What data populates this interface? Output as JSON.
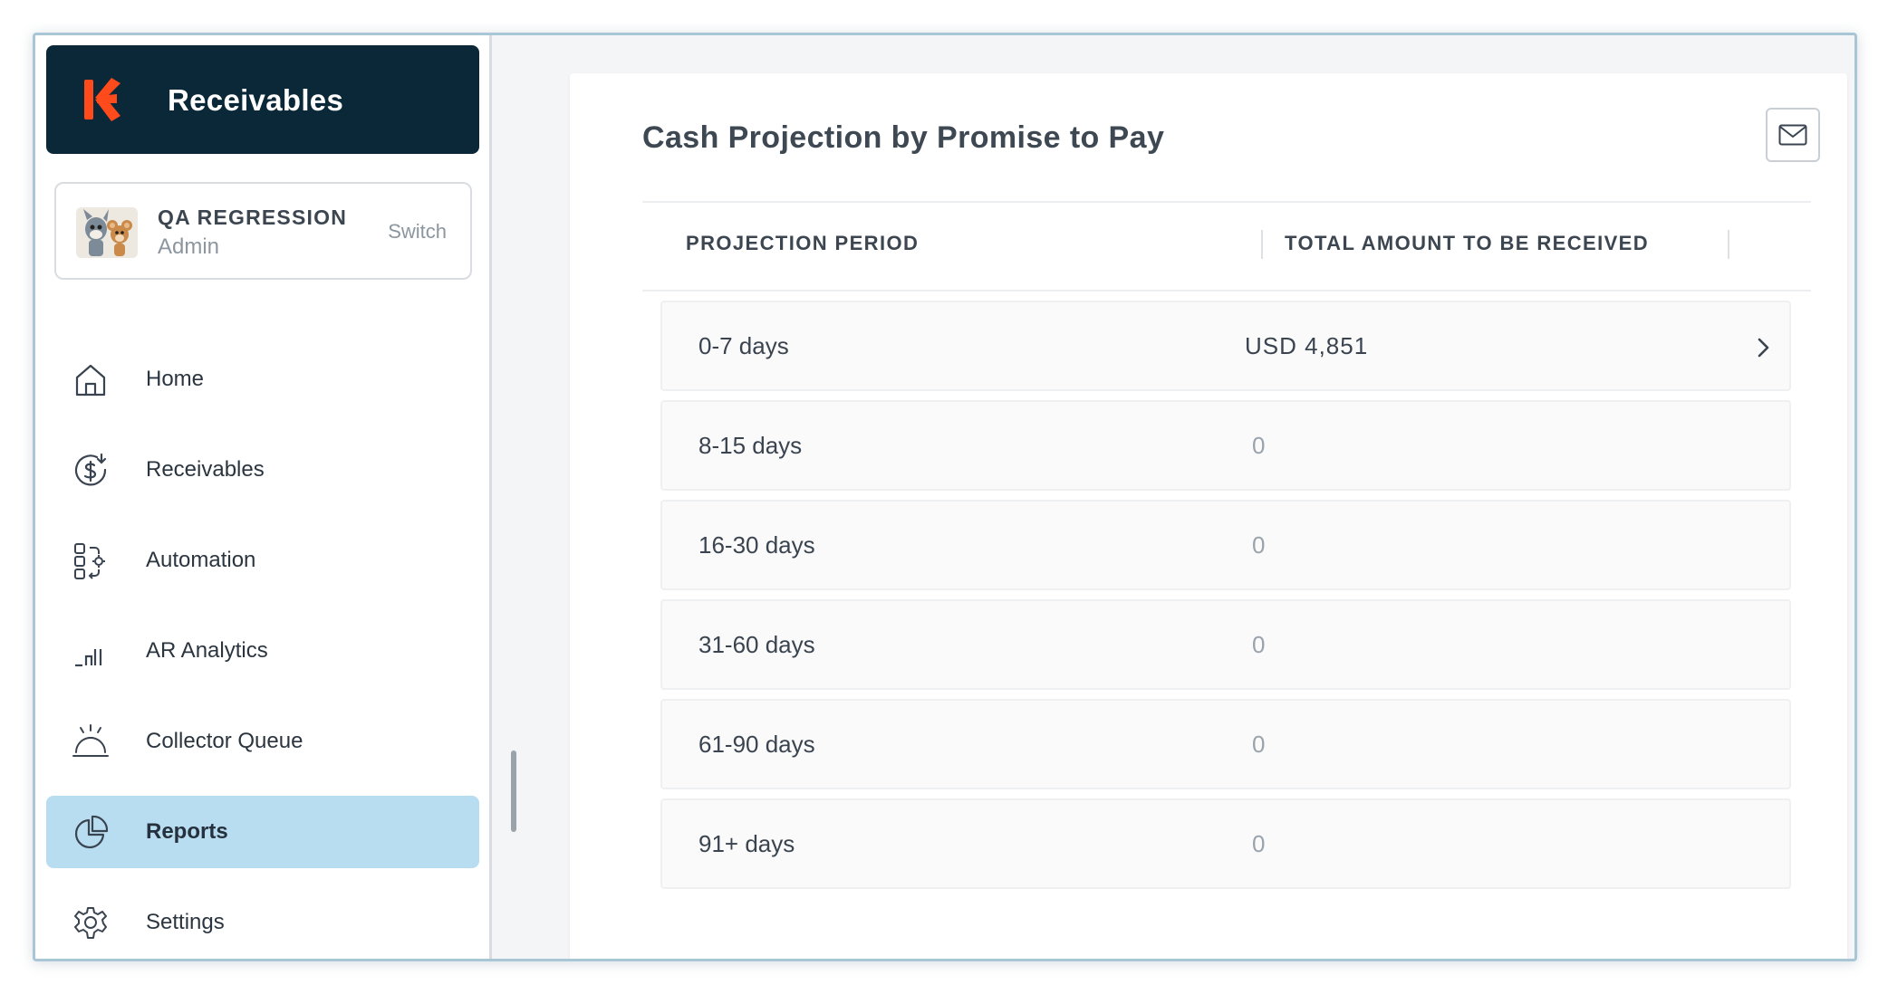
{
  "brand": {
    "title": "Receivables",
    "accent": "#ff4a1c",
    "bg": "#0b2838"
  },
  "org": {
    "name": "QA REGRESSION",
    "role": "Admin",
    "switch_label": "Switch"
  },
  "nav": {
    "items": [
      {
        "label": "Home",
        "icon": "home-icon"
      },
      {
        "label": "Receivables",
        "icon": "dollar-receive-icon"
      },
      {
        "label": "Automation",
        "icon": "automation-icon"
      },
      {
        "label": "AR Analytics",
        "icon": "bar-chart-icon"
      },
      {
        "label": "Collector Queue",
        "icon": "service-bell-icon"
      },
      {
        "label": "Reports",
        "icon": "pie-chart-icon",
        "active": true
      },
      {
        "label": "Settings",
        "icon": "gear-icon"
      }
    ]
  },
  "report": {
    "title": "Cash Projection by Promise to Pay",
    "columns": {
      "period": "PROJECTION PERIOD",
      "amount": "TOTAL AMOUNT TO BE RECEIVED"
    },
    "rows": [
      {
        "period": "0-7 days",
        "amount": "USD 4,851"
      },
      {
        "period": "8-15 days",
        "amount": "0"
      },
      {
        "period": "16-30 days",
        "amount": "0"
      },
      {
        "period": "31-60 days",
        "amount": "0"
      },
      {
        "period": "61-90 days",
        "amount": "0"
      },
      {
        "period": "91+ days",
        "amount": "0"
      }
    ]
  }
}
